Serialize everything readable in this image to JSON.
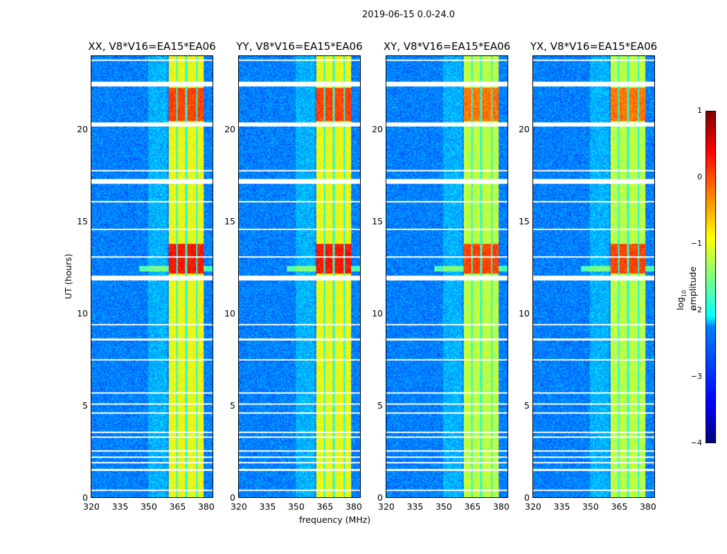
{
  "chart_data": {
    "type": "heatmap",
    "title": "2019-06-15 0.0-24.0",
    "xlabel": "frequency (MHz)",
    "ylabel": "UT (hours)",
    "xlim": [
      320,
      384
    ],
    "ylim": [
      0,
      24
    ],
    "xticks": [
      "320",
      "335",
      "350",
      "365",
      "380"
    ],
    "xtick_values": [
      320,
      335,
      350,
      365,
      380
    ],
    "yticks": [
      "0",
      "5",
      "10",
      "15",
      "20"
    ],
    "ytick_values": [
      0,
      5,
      10,
      15,
      20
    ],
    "panels": [
      {
        "title": "XX, V8*V16=EA15*EA06"
      },
      {
        "title": "YY, V8*V16=EA15*EA06"
      },
      {
        "title": "XY, V8*V16=EA15*EA06"
      },
      {
        "title": "YX, V8*V16=EA15*EA06"
      }
    ],
    "rfi_band_mhz": [
      360.5,
      379
    ],
    "flagged_hours": [
      0.4,
      1.5,
      1.9,
      2.2,
      2.55,
      3.3,
      3.55,
      4.6,
      5.1,
      5.7,
      7.5,
      8.6,
      9.4,
      11.95,
      13.1,
      14.6,
      16.1,
      17.2,
      17.8,
      20.3,
      22.5,
      23.8
    ],
    "colorbar": {
      "label": "log10 amplitude",
      "label_main": "log",
      "label_sub": "10",
      "label_rest": " amplitude",
      "range": [
        -4,
        1
      ],
      "ticks": [
        "1",
        "0",
        "−1",
        "−2",
        "−3",
        "−4"
      ],
      "tick_values": [
        1,
        0,
        -1,
        -2,
        -3,
        -4
      ],
      "colormap": "jet"
    }
  }
}
